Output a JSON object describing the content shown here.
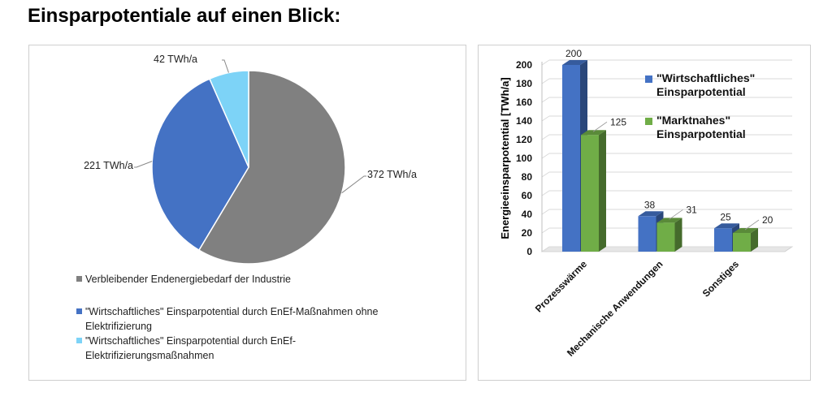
{
  "page": {
    "title": "Einsparpotentiale auf einen Blick:"
  },
  "chart_data": [
    {
      "type": "pie",
      "slices": [
        {
          "label": "372 TWh/a",
          "value": 372,
          "legend": "Verbleibender Endenergiebedarf der Industrie",
          "color": "#808080"
        },
        {
          "label": "221 TWh/a",
          "value": 221,
          "legend": "\"Wirtschaftliches\" Einsparpotential durch EnEf-Maßnahmen ohne Elektrifizierung",
          "color": "#4472C4"
        },
        {
          "label": "42 TWh/a",
          "value": 42,
          "legend": "\"Wirtschaftliches\" Einsparpotential durch EnEf-Elektrifizierungsmaßnahmen",
          "color": "#7DD3F7"
        }
      ],
      "legend_lines": [
        [
          "Verbleibender Endenergiebedarf der Industrie"
        ],
        [
          "\"Wirtschaftliches\" Einsparpotential durch EnEf-Maßnahmen ohne",
          "Elektrifizierung"
        ],
        [
          "\"Wirtschaftliches\" Einsparpotential durch EnEf-",
          "Elektrifizierungsmaßnahmen"
        ]
      ],
      "legend_position": "bottom"
    },
    {
      "type": "bar",
      "categories": [
        "Prozesswärme",
        "Mechanische Anwendungen",
        "Sonstiges"
      ],
      "series": [
        {
          "name": "\"Wirtschaftliches\" Einsparpotential",
          "name_lines": [
            "\"Wirtschaftliches\"",
            "Einsparpotential"
          ],
          "values": [
            200,
            38,
            25
          ],
          "color": "#4472C4"
        },
        {
          "name": "\"Marktnahes\" Einsparpotential",
          "name_lines": [
            "\"Marktnahes\"",
            "Einsparpotential"
          ],
          "values": [
            125,
            31,
            20
          ],
          "color": "#70AD47"
        }
      ],
      "ylabel": "Energieeinsparpotential [TWh/a]",
      "ylim": [
        0,
        200
      ],
      "yticks": [
        0,
        20,
        40,
        60,
        80,
        100,
        120,
        140,
        160,
        180,
        200
      ],
      "grid": true,
      "legend_position": "top-right",
      "style": "3d-columns"
    }
  ]
}
